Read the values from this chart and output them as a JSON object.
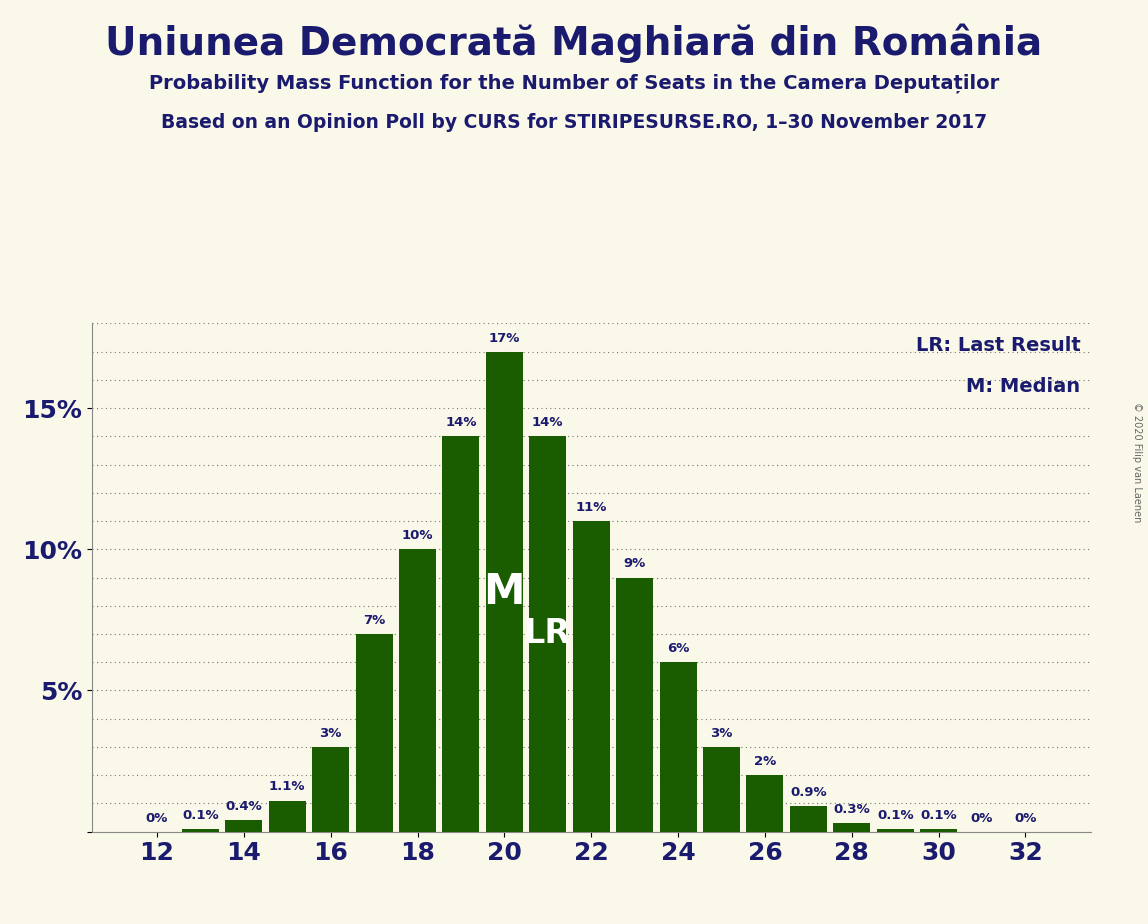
{
  "title": "Uniunea Democrată Maghiară din România",
  "subtitle1": "Probability Mass Function for the Number of Seats in the Camera Deputaților",
  "subtitle2": "Based on an Opinion Poll by CURS for STIRIPESURSE.RO, 1–30 November 2017",
  "copyright": "© 2020 Filip van Laenen",
  "seats": [
    12,
    13,
    14,
    15,
    16,
    17,
    18,
    19,
    20,
    21,
    22,
    23,
    24,
    25,
    26,
    27,
    28,
    29,
    30,
    31,
    32
  ],
  "probabilities": [
    0.0,
    0.1,
    0.4,
    1.1,
    3.0,
    7.0,
    10.0,
    14.0,
    17.0,
    14.0,
    11.0,
    9.0,
    6.0,
    3.0,
    2.0,
    0.9,
    0.3,
    0.1,
    0.1,
    0.0,
    0.0
  ],
  "bar_color": "#1a5c00",
  "background_color": "#faf8e8",
  "text_color": "#1a1a6e",
  "median_seat": 20,
  "last_result_seat": 21,
  "legend_lr": "LR: Last Result",
  "legend_m": "M: Median",
  "ylim": [
    0,
    18
  ],
  "xticks": [
    12,
    14,
    16,
    18,
    20,
    22,
    24,
    26,
    28,
    30,
    32
  ],
  "prob_labels": [
    "0%",
    "0.1%",
    "0.4%",
    "1.1%",
    "3%",
    "7%",
    "10%",
    "14%",
    "17%",
    "14%",
    "11%",
    "9%",
    "6%",
    "3%",
    "2%",
    "0.9%",
    "0.3%",
    "0.1%",
    "0.1%",
    "0%",
    "0%"
  ]
}
